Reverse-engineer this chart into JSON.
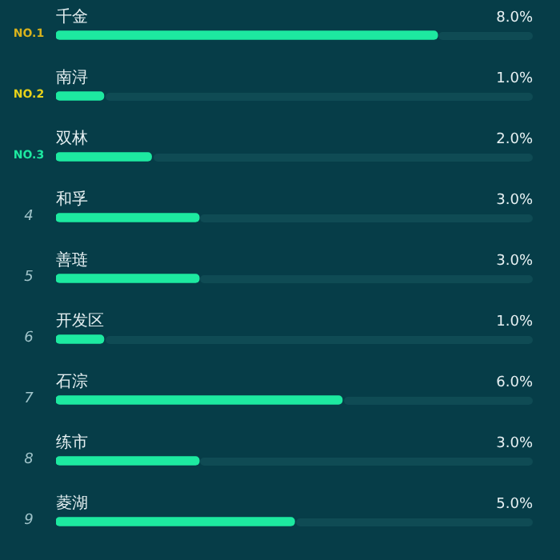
{
  "chart_data": {
    "type": "bar",
    "orientation": "horizontal",
    "categories": [
      "千金",
      "南浔",
      "双林",
      "和孚",
      "善琏",
      "开发区",
      "石淙",
      "练市",
      "菱湖"
    ],
    "series": [
      {
        "color": "#1de9a0",
        "values": [
          8,
          1,
          2,
          3,
          3,
          1,
          6,
          3,
          5
        ],
        "value_labels": [
          "8.0%",
          "1.0%",
          "2.0%",
          "3.0%",
          "3.0%",
          "1.0%",
          "6.0%",
          "3.0%",
          "5.0%"
        ]
      }
    ],
    "xlim": [
      0,
      10
    ],
    "tick_labels": false,
    "legend": false,
    "annotations": [
      "NO.1",
      "NO.2",
      "NO.3",
      "4",
      "5",
      "6",
      "7",
      "8",
      "9"
    ]
  }
}
